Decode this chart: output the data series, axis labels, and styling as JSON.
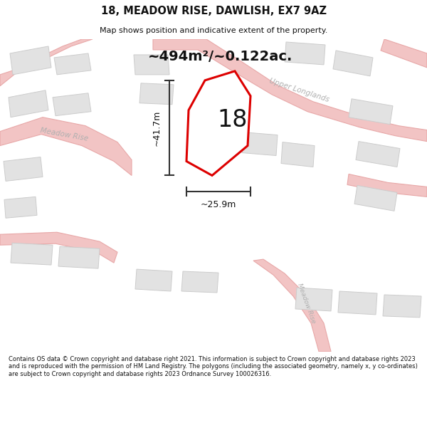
{
  "title": "18, MEADOW RISE, DAWLISH, EX7 9AZ",
  "subtitle": "Map shows position and indicative extent of the property.",
  "area_text": "~494m²/~0.122ac.",
  "number_label": "18",
  "dim_height": "~41.7m",
  "dim_width": "~25.9m",
  "road_label_upper": "Upper Longlands",
  "road_label_meadow1": "Meadow Rise",
  "road_label_meadow2": "Meadow Rise",
  "footer": "Contains OS data © Crown copyright and database right 2021. This information is subject to Crown copyright and database rights 2023 and is reproduced with the permission of HM Land Registry. The polygons (including the associated geometry, namely x, y co-ordinates) are subject to Crown copyright and database rights 2023 Ordnance Survey 100026316.",
  "bg_color": "#efefef",
  "road_fill": "#f2c4c4",
  "road_edge": "#e8a8a8",
  "building_fill": "#e2e2e2",
  "building_edge": "#cccccc",
  "plot_edge": "#dd0000",
  "plot_fill": "#ffffff",
  "dim_color": "#333333",
  "road_text_color": "#b0b0b0",
  "title_color": "#111111",
  "footer_color": "#111111",
  "header_bg": "#ffffff",
  "footer_bg": "#ffffff"
}
